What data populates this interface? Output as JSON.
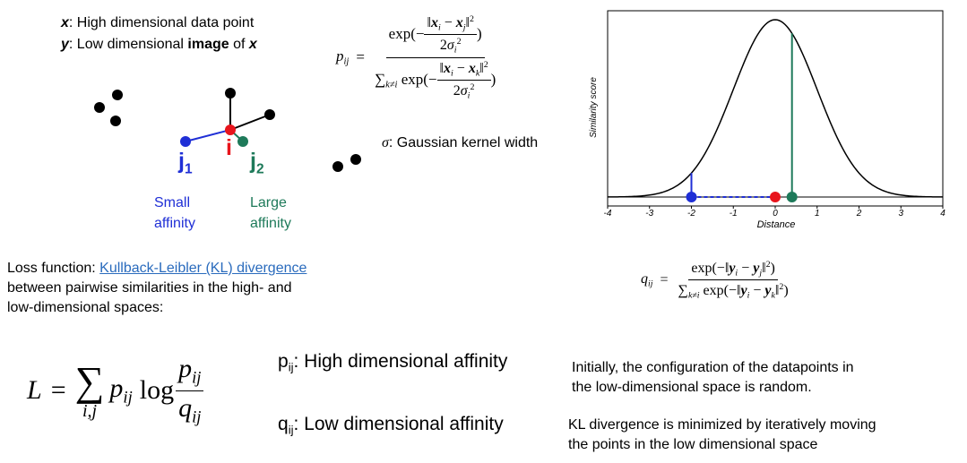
{
  "legend": {
    "x_prefix": "x",
    "x_text": ": High dimensional data point",
    "y_prefix": "y",
    "y_text_before": ": Low dimensional ",
    "y_text_bold": "image",
    "y_text_after": " of ",
    "y_text_var": "x"
  },
  "diagram": {
    "label_i": "i",
    "label_j1": "j",
    "label_j1_sub": "1",
    "label_j2": "j",
    "label_j2_sub": "2",
    "small_affinity_line1": "Small",
    "small_affinity_line2": "affinity",
    "large_affinity_line1": "Large",
    "large_affinity_line2": "affinity",
    "colors": {
      "i": "#e8141c",
      "j1": "#1f2fd6",
      "j2": "#1e7a5a",
      "points": "#000000"
    }
  },
  "formula_p": {
    "lhs": "p",
    "lhs_sub": "ij",
    "num": "exp(−‖x_i − x_j‖² / 2σ_i²)",
    "den": "Σ_{k≠i} exp(−‖x_i − x_k‖² / 2σ_i²)"
  },
  "sigma_note": {
    "symbol": "σ",
    "text": ": Gaussian kernel width"
  },
  "chart_data": {
    "type": "line",
    "title": "",
    "xlabel": "Distance",
    "ylabel": "Similarity score",
    "xlim": [
      -4,
      4
    ],
    "x_ticks": [
      "-4",
      "-3",
      "-2",
      "-1",
      "0",
      "1",
      "2",
      "3",
      "4"
    ],
    "series": [
      {
        "function": "gaussian",
        "mean": 0,
        "sd": 1
      }
    ],
    "markers": [
      {
        "x": -2,
        "color": "#1f2fd6"
      },
      {
        "x": 0,
        "color": "#e8141c"
      },
      {
        "x": 0.4,
        "color": "#1e7a5a"
      }
    ]
  },
  "loss_desc": {
    "prefix": "Loss function: ",
    "link": "Kullback-Leibler (KL) divergence",
    "line2": "between pairwise similarities in the high- and",
    "line3": "low-dimensional spaces:"
  },
  "formula_q": {
    "lhs": "q",
    "lhs_sub": "ij",
    "num": "exp(−‖y_i − y_j‖²)",
    "den": "Σ_{k≠i} exp(−‖y_i − y_k‖²)"
  },
  "formula_L": {
    "lhs": "L",
    "sum_sub": "i,j",
    "p": "p",
    "p_sub": "ij",
    "log": "log",
    "frac_num": "p",
    "frac_num_sub": "ij",
    "frac_den": "q",
    "frac_den_sub": "ij"
  },
  "affinities": {
    "p_sym": "p",
    "p_sub": "ij",
    "p_text": ": High dimensional affinity",
    "q_sym": "q",
    "q_sub": "ij",
    "q_text": ": Low dimensional affinity"
  },
  "notes": {
    "note1_line1": "Initially, the configuration of the datapoints in",
    "note1_line2": "the low-dimensional space is random.",
    "note2_line1": "KL divergence is minimized by iteratively moving",
    "note2_line2": "the points in the low dimensional space"
  }
}
